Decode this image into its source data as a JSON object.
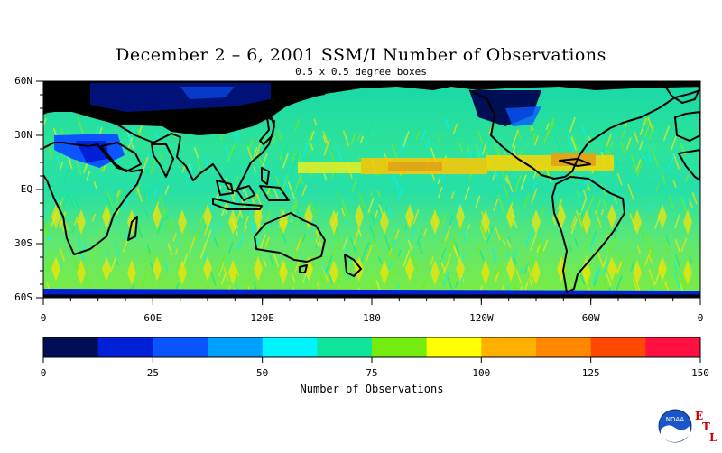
{
  "title": "December 2 – 6, 2001 SSM/I Number of Observations",
  "subtitle": "0.5 x 0.5 degree boxes",
  "lat_labels": [
    "60N",
    "30N",
    "EQ",
    "30S",
    "60S"
  ],
  "lon_labels": [
    "0",
    "60E",
    "120E",
    "180",
    "120W",
    "60W",
    "0"
  ],
  "colorbar": {
    "title": "Number of Observations",
    "tick_labels": [
      "0",
      "25",
      "50",
      "75",
      "100",
      "125",
      "150"
    ],
    "colors": [
      "#000f55",
      "#0020d8",
      "#0a55ff",
      "#00a0ff",
      "#00f4ff",
      "#10e69a",
      "#74ec10",
      "#ffff00",
      "#ffb000",
      "#ff8800",
      "#ff4800",
      "#ff1040"
    ]
  },
  "logo": {
    "text": "NOAA",
    "letters": [
      "E",
      "T",
      "L"
    ]
  }
}
